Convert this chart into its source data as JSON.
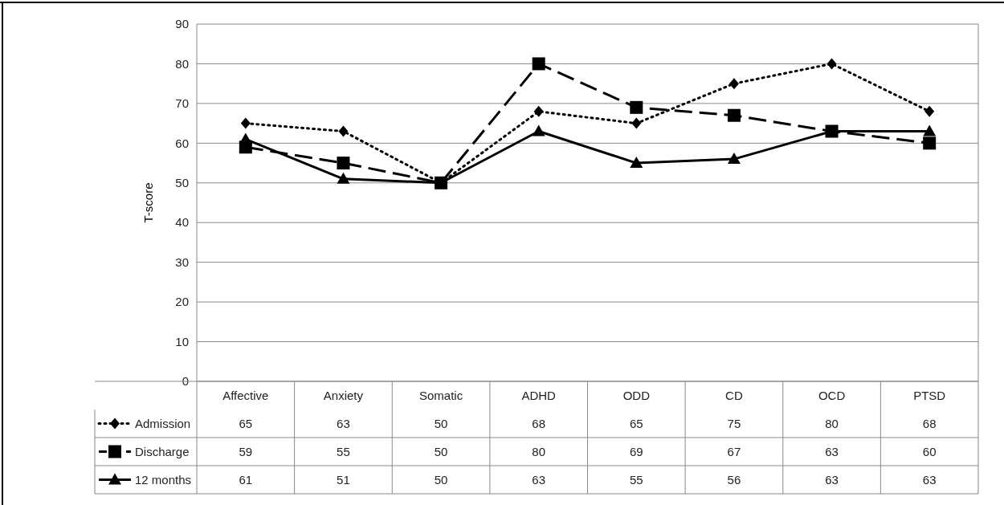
{
  "chart_data": {
    "type": "line",
    "ylabel": "T-score",
    "categories": [
      "Affective",
      "Anxiety",
      "Somatic",
      "ADHD",
      "ODD",
      "CD",
      "OCD",
      "PTSD"
    ],
    "series": [
      {
        "name": "Admission",
        "color": "#000000",
        "marker": "diamond",
        "line_style": "dotted",
        "values": [
          65,
          63,
          50,
          68,
          65,
          75,
          80,
          68
        ]
      },
      {
        "name": "Discharge",
        "color": "#000000",
        "marker": "square",
        "line_style": "dashed",
        "values": [
          59,
          55,
          50,
          80,
          69,
          67,
          63,
          60
        ]
      },
      {
        "name": "12 months",
        "color": "#000000",
        "marker": "triangle",
        "line_style": "solid",
        "values": [
          61,
          51,
          50,
          63,
          55,
          56,
          63,
          63
        ]
      }
    ],
    "ylim": [
      0,
      90
    ],
    "yticks": [
      0,
      10,
      20,
      30,
      40,
      50,
      60,
      70,
      80,
      90
    ],
    "grid": "y",
    "legend": "bottom",
    "data_labels": true
  }
}
